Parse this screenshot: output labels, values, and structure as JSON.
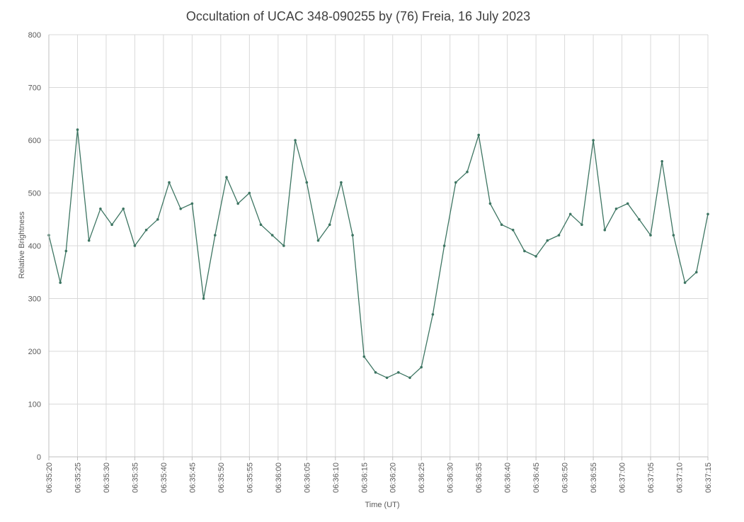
{
  "chart_data": {
    "type": "line",
    "title": "Occultation of UCAC 348-090255 by (76) Freia, 16 July 2023",
    "xlabel": "Time (UT)",
    "ylabel": "Relative Brightness",
    "ylim": [
      0,
      800
    ],
    "xlim": [
      "06:35:20",
      "06:37:15"
    ],
    "y_ticks": [
      "0",
      "100",
      "200",
      "300",
      "400",
      "500",
      "600",
      "700",
      "800"
    ],
    "x_ticks": [
      "06:35:20",
      "06:35:25",
      "06:35:30",
      "06:35:35",
      "06:35:40",
      "06:35:45",
      "06:35:50",
      "06:35:55",
      "06:36:00",
      "06:36:05",
      "06:36:10",
      "06:36:15",
      "06:36:20",
      "06:36:25",
      "06:36:30",
      "06:36:35",
      "06:36:40",
      "06:36:45",
      "06:36:50",
      "06:36:55",
      "06:37:00",
      "06:37:05",
      "06:37:10",
      "06:37:15"
    ],
    "grid": true,
    "legend": "none",
    "series_color": "#3d7562",
    "series": [
      {
        "x": [
          "06:35:20",
          "06:35:22",
          "06:35:23",
          "06:35:25",
          "06:35:27",
          "06:35:29",
          "06:35:31",
          "06:35:33",
          "06:35:35",
          "06:35:37",
          "06:35:39",
          "06:35:41",
          "06:35:43",
          "06:35:45",
          "06:35:47",
          "06:35:49",
          "06:35:51",
          "06:35:53",
          "06:35:55",
          "06:35:57",
          "06:35:59",
          "06:36:01",
          "06:36:03",
          "06:36:05",
          "06:36:07",
          "06:36:09",
          "06:36:11",
          "06:36:13",
          "06:36:15",
          "06:36:17",
          "06:36:19",
          "06:36:21",
          "06:36:23",
          "06:36:25",
          "06:36:27",
          "06:36:29",
          "06:36:31",
          "06:36:33",
          "06:36:35",
          "06:36:37",
          "06:36:39",
          "06:36:41",
          "06:36:43",
          "06:36:45",
          "06:36:47",
          "06:36:49",
          "06:36:51",
          "06:36:53",
          "06:36:55",
          "06:36:57",
          "06:36:59",
          "06:37:01",
          "06:37:03",
          "06:37:05",
          "06:37:07",
          "06:37:09",
          "06:37:11",
          "06:37:13",
          "06:37:15"
        ],
        "values": [
          420,
          330,
          390,
          620,
          410,
          470,
          440,
          470,
          400,
          430,
          450,
          520,
          470,
          480,
          300,
          420,
          530,
          480,
          500,
          440,
          420,
          400,
          600,
          520,
          410,
          440,
          520,
          420,
          190,
          160,
          150,
          160,
          150,
          170,
          270,
          400,
          520,
          540,
          610,
          480,
          440,
          430,
          390,
          380,
          410,
          420,
          460,
          440,
          600,
          430,
          470,
          480,
          450,
          420,
          560,
          420,
          330,
          350,
          460
        ]
      }
    ]
  }
}
